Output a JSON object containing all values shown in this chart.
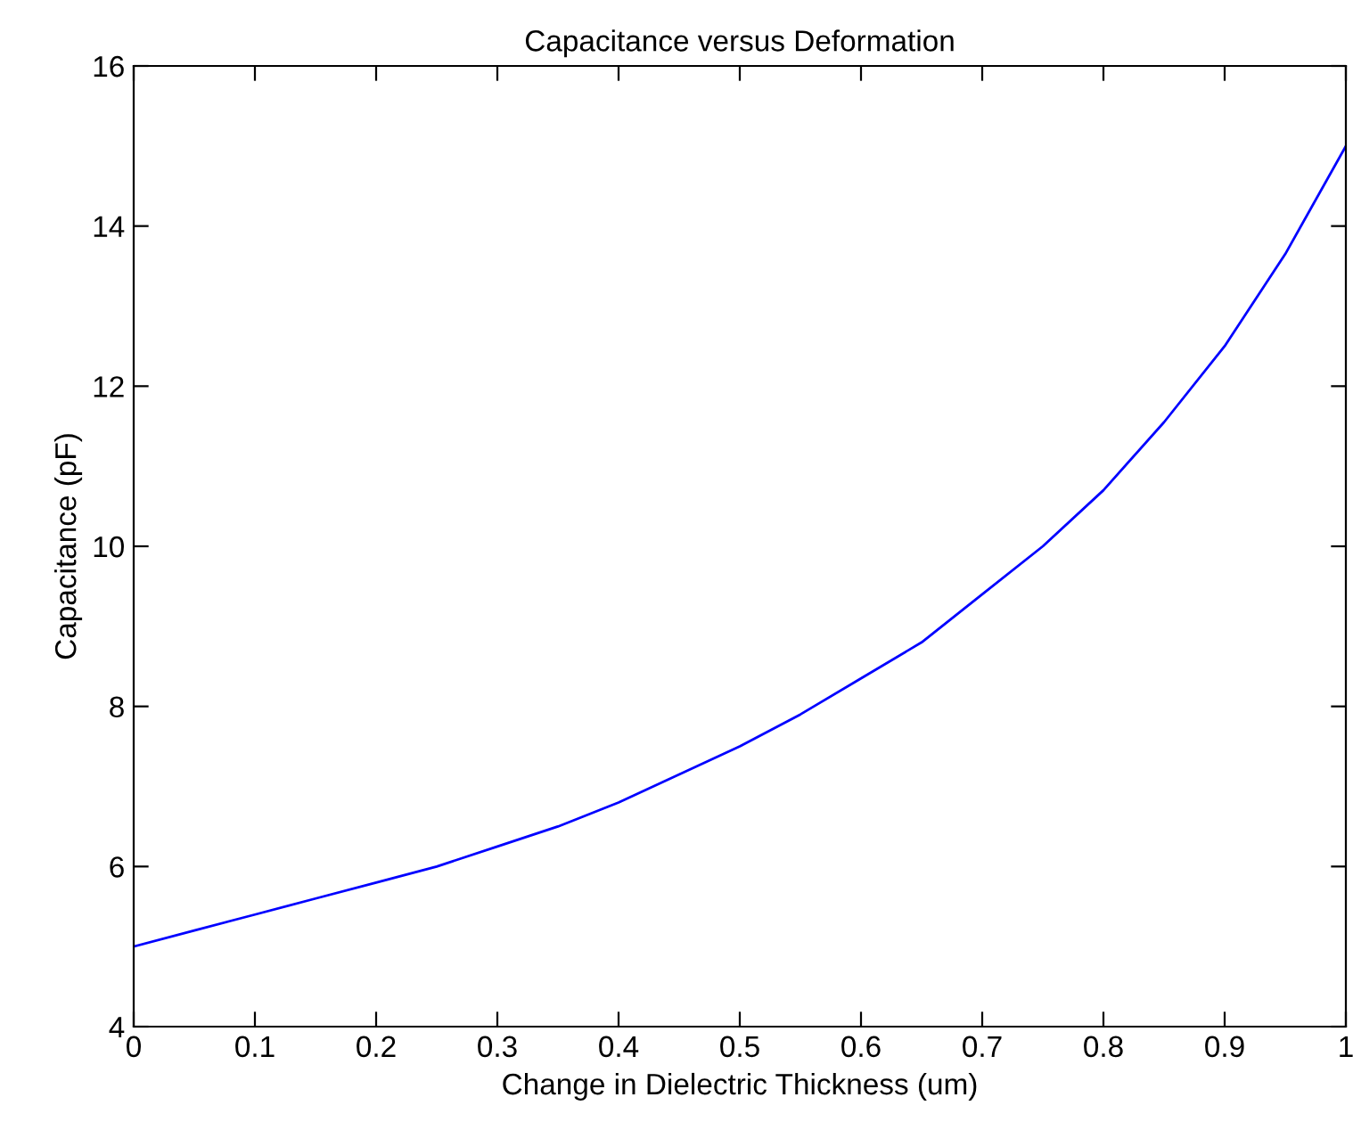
{
  "chart_data": {
    "type": "line",
    "title": "Capacitance versus Deformation",
    "xlabel": "Change in Dielectric Thickness (um)",
    "ylabel": "Capacitance (pF)",
    "series": [
      {
        "color": "#0000ff",
        "x": [
          0,
          0.05,
          0.1,
          0.15,
          0.2,
          0.25,
          0.3,
          0.35,
          0.4,
          0.45,
          0.5,
          0.55,
          0.6,
          0.65,
          0.7,
          0.75,
          0.8,
          0.85,
          0.9,
          0.95,
          1.0
        ],
        "values": [
          5.0,
          5.2,
          5.4,
          5.6,
          5.8,
          6.0,
          6.25,
          6.5,
          6.8,
          7.15,
          7.5,
          7.9,
          8.35,
          8.8,
          9.4,
          10.0,
          10.7,
          11.55,
          12.5,
          13.65,
          15.0
        ]
      }
    ],
    "xlim": [
      0,
      1
    ],
    "xticks": [
      0,
      0.1,
      0.2,
      0.3,
      0.4,
      0.5,
      0.6,
      0.7,
      0.8,
      0.9,
      1
    ],
    "ylim": [
      4,
      16
    ],
    "yticks": [
      4,
      6,
      8,
      10,
      12,
      14,
      16
    ],
    "grid": false,
    "legend": false
  }
}
